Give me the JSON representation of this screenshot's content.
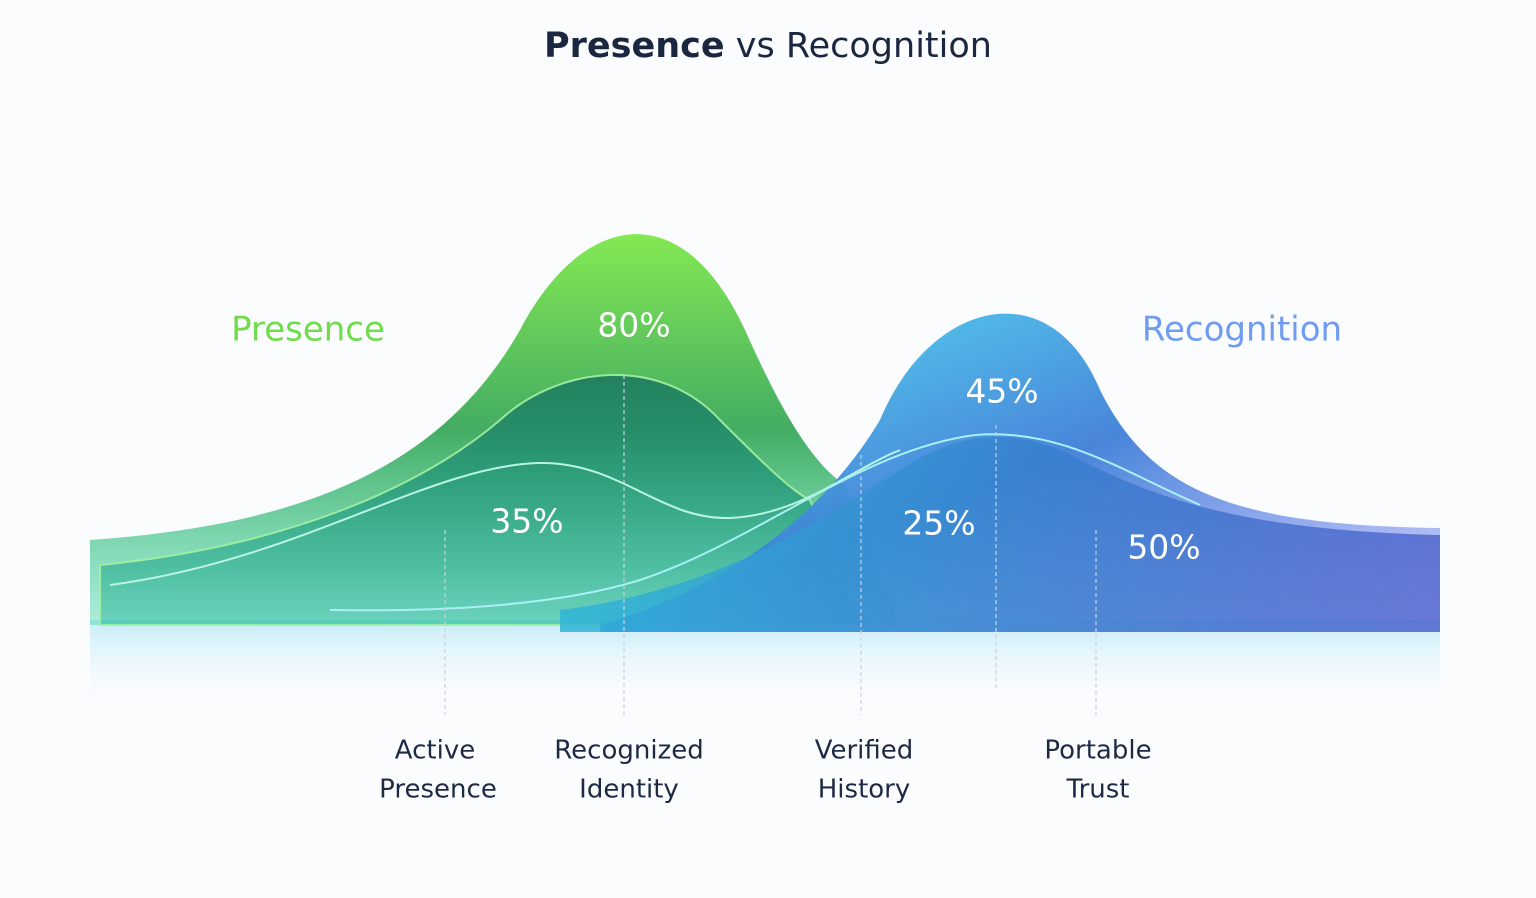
{
  "title": {
    "bold": "Presence",
    "rest": "vs Recognition"
  },
  "series": [
    {
      "name": "Presence",
      "color": "#6fdc4a"
    },
    {
      "name": "Recognition",
      "color": "#6f9cf0"
    }
  ],
  "value_labels": [
    "80%",
    "35%",
    "45%",
    "25%",
    "50%"
  ],
  "categories": [
    [
      "Active",
      "Presence"
    ],
    [
      "Recognized",
      "Identity"
    ],
    [
      "Verified",
      "History"
    ],
    [
      "Portable",
      "Trust"
    ]
  ]
}
